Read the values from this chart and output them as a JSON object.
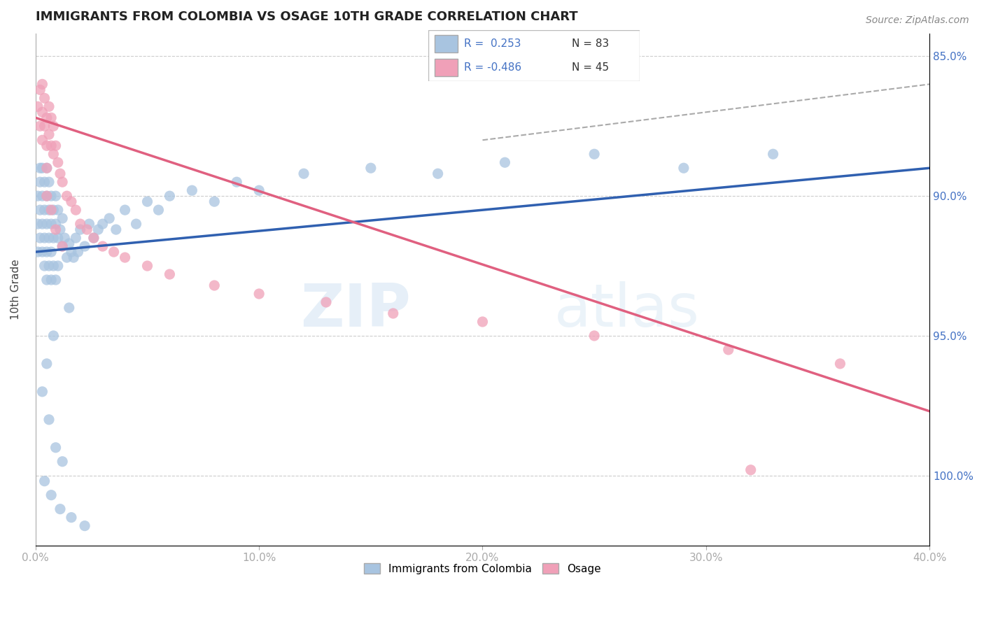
{
  "title": "IMMIGRANTS FROM COLOMBIA VS OSAGE 10TH GRADE CORRELATION CHART",
  "source_text": "Source: ZipAtlas.com",
  "ylabel": "10th Grade",
  "xlim": [
    0.0,
    0.4
  ],
  "ylim": [
    0.825,
    1.008
  ],
  "xtick_labels": [
    "0.0%",
    "10.0%",
    "20.0%",
    "30.0%",
    "40.0%"
  ],
  "xtick_values": [
    0.0,
    0.1,
    0.2,
    0.3,
    0.4
  ],
  "ytick_values": [
    0.85,
    0.9,
    0.95,
    1.0
  ],
  "right_ytick_labels": [
    "100.0%",
    "95.0%",
    "90.0%",
    "85.0%"
  ],
  "blue_color": "#a8c4e0",
  "pink_color": "#f0a0b8",
  "blue_line_color": "#3060b0",
  "pink_line_color": "#e06080",
  "dashed_line_color": "#aaaaaa",
  "legend_R_blue": "0.253",
  "legend_N_blue": "83",
  "legend_R_pink": "-0.486",
  "legend_N_pink": "45",
  "blue_line_x0": 0.0,
  "blue_line_y0": 0.93,
  "blue_line_x1": 0.4,
  "blue_line_y1": 0.96,
  "pink_line_x0": 0.0,
  "pink_line_y0": 0.978,
  "pink_line_x1": 0.4,
  "pink_line_y1": 0.873,
  "dash_line_x0": 0.2,
  "dash_line_y0": 0.97,
  "dash_line_x1": 0.4,
  "dash_line_y1": 0.99,
  "blue_scatter_x": [
    0.001,
    0.001,
    0.001,
    0.002,
    0.002,
    0.002,
    0.002,
    0.003,
    0.003,
    0.003,
    0.003,
    0.004,
    0.004,
    0.004,
    0.004,
    0.005,
    0.005,
    0.005,
    0.005,
    0.005,
    0.006,
    0.006,
    0.006,
    0.006,
    0.007,
    0.007,
    0.007,
    0.007,
    0.008,
    0.008,
    0.008,
    0.009,
    0.009,
    0.009,
    0.01,
    0.01,
    0.01,
    0.011,
    0.012,
    0.012,
    0.013,
    0.014,
    0.015,
    0.016,
    0.017,
    0.018,
    0.019,
    0.02,
    0.022,
    0.024,
    0.026,
    0.028,
    0.03,
    0.033,
    0.036,
    0.04,
    0.045,
    0.05,
    0.055,
    0.06,
    0.07,
    0.08,
    0.09,
    0.1,
    0.12,
    0.15,
    0.18,
    0.21,
    0.25,
    0.29,
    0.33,
    0.015,
    0.008,
    0.005,
    0.003,
    0.006,
    0.009,
    0.012,
    0.004,
    0.007,
    0.011,
    0.016,
    0.022
  ],
  "blue_scatter_y": [
    0.94,
    0.95,
    0.93,
    0.945,
    0.955,
    0.935,
    0.96,
    0.94,
    0.95,
    0.93,
    0.96,
    0.945,
    0.955,
    0.935,
    0.925,
    0.94,
    0.95,
    0.93,
    0.96,
    0.92,
    0.945,
    0.935,
    0.955,
    0.925,
    0.94,
    0.95,
    0.93,
    0.92,
    0.945,
    0.935,
    0.925,
    0.94,
    0.95,
    0.92,
    0.935,
    0.945,
    0.925,
    0.938,
    0.932,
    0.942,
    0.935,
    0.928,
    0.933,
    0.93,
    0.928,
    0.935,
    0.93,
    0.938,
    0.932,
    0.94,
    0.935,
    0.938,
    0.94,
    0.942,
    0.938,
    0.945,
    0.94,
    0.948,
    0.945,
    0.95,
    0.952,
    0.948,
    0.955,
    0.952,
    0.958,
    0.96,
    0.958,
    0.962,
    0.965,
    0.96,
    0.965,
    0.91,
    0.9,
    0.89,
    0.88,
    0.87,
    0.86,
    0.855,
    0.848,
    0.843,
    0.838,
    0.835,
    0.832
  ],
  "pink_scatter_x": [
    0.001,
    0.002,
    0.002,
    0.003,
    0.003,
    0.003,
    0.004,
    0.004,
    0.005,
    0.005,
    0.005,
    0.006,
    0.006,
    0.007,
    0.007,
    0.008,
    0.008,
    0.009,
    0.01,
    0.011,
    0.012,
    0.014,
    0.016,
    0.018,
    0.02,
    0.023,
    0.026,
    0.03,
    0.035,
    0.04,
    0.05,
    0.06,
    0.08,
    0.1,
    0.13,
    0.16,
    0.2,
    0.25,
    0.31,
    0.36,
    0.005,
    0.007,
    0.009,
    0.012,
    0.32
  ],
  "pink_scatter_y": [
    0.982,
    0.975,
    0.988,
    0.97,
    0.98,
    0.99,
    0.975,
    0.985,
    0.968,
    0.978,
    0.96,
    0.972,
    0.982,
    0.968,
    0.978,
    0.965,
    0.975,
    0.968,
    0.962,
    0.958,
    0.955,
    0.95,
    0.948,
    0.945,
    0.94,
    0.938,
    0.935,
    0.932,
    0.93,
    0.928,
    0.925,
    0.922,
    0.918,
    0.915,
    0.912,
    0.908,
    0.905,
    0.9,
    0.895,
    0.89,
    0.95,
    0.945,
    0.938,
    0.932,
    0.852
  ],
  "watermark": "ZIPatlas",
  "background_color": "#ffffff",
  "grid_color": "#cccccc"
}
